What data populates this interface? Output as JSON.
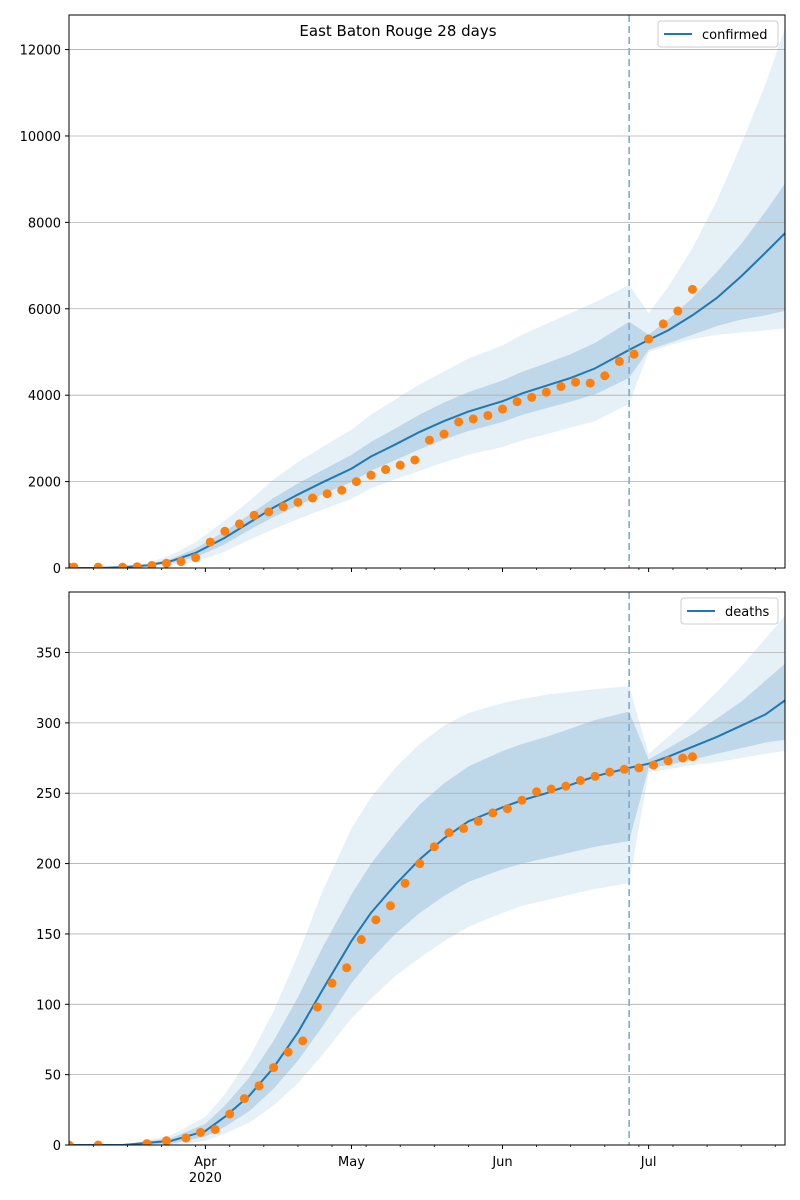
{
  "chart_data": [
    {
      "type": "line",
      "title": "East Baton Rouge 28 days",
      "xlabel": "",
      "ylabel": "",
      "ylim": [
        0,
        12800
      ],
      "yticks": [
        0,
        2000,
        4000,
        6000,
        8000,
        10000,
        12000
      ],
      "grid": "y",
      "legend": "top-right",
      "forecast_start": "2020-06-27",
      "series": [
        {
          "name": "confirmed",
          "kind": "model-median",
          "color": "#1f77b4",
          "x": [
            "2020-03-01",
            "2020-03-10",
            "2020-03-15",
            "2020-03-20",
            "2020-03-25",
            "2020-03-30",
            "2020-04-05",
            "2020-04-10",
            "2020-04-15",
            "2020-04-20",
            "2020-04-25",
            "2020-05-01",
            "2020-05-05",
            "2020-05-10",
            "2020-05-15",
            "2020-05-20",
            "2020-05-25",
            "2020-06-01",
            "2020-06-05",
            "2020-06-10",
            "2020-06-15",
            "2020-06-20",
            "2020-06-27",
            "2020-07-01",
            "2020-07-05",
            "2020-07-10",
            "2020-07-15",
            "2020-07-20",
            "2020-07-25",
            "2020-07-29"
          ],
          "y": [
            0,
            0,
            20,
            60,
            160,
            350,
            700,
            1050,
            1400,
            1700,
            1980,
            2300,
            2580,
            2860,
            3150,
            3400,
            3620,
            3860,
            4040,
            4220,
            4400,
            4620,
            5050,
            5280,
            5500,
            5850,
            6250,
            6750,
            7300,
            7750
          ],
          "band_inner": [
            [
              0,
              0
            ],
            [
              0,
              0
            ],
            [
              10,
              30
            ],
            [
              40,
              80
            ],
            [
              110,
              210
            ],
            [
              250,
              450
            ],
            [
              550,
              850
            ],
            [
              880,
              1230
            ],
            [
              1180,
              1620
            ],
            [
              1450,
              1960
            ],
            [
              1700,
              2260
            ],
            [
              1990,
              2620
            ],
            [
              2250,
              2920
            ],
            [
              2500,
              3230
            ],
            [
              2750,
              3550
            ],
            [
              2980,
              3830
            ],
            [
              3170,
              4070
            ],
            [
              3380,
              4340
            ],
            [
              3540,
              4540
            ],
            [
              3700,
              4740
            ],
            [
              3850,
              4950
            ],
            [
              4020,
              5210
            ],
            [
              4400,
              5700
            ],
            [
              5050,
              5400
            ],
            [
              5200,
              5750
            ],
            [
              5400,
              6250
            ],
            [
              5600,
              6850
            ],
            [
              5750,
              7500
            ],
            [
              5850,
              8250
            ],
            [
              5950,
              8900
            ]
          ],
          "band_outer": [
            [
              0,
              0
            ],
            [
              0,
              0
            ],
            [
              0,
              45
            ],
            [
              20,
              110
            ],
            [
              60,
              300
            ],
            [
              150,
              600
            ],
            [
              380,
              1100
            ],
            [
              650,
              1550
            ],
            [
              900,
              2050
            ],
            [
              1130,
              2450
            ],
            [
              1350,
              2800
            ],
            [
              1600,
              3200
            ],
            [
              1850,
              3550
            ],
            [
              2050,
              3900
            ],
            [
              2250,
              4250
            ],
            [
              2450,
              4550
            ],
            [
              2620,
              4850
            ],
            [
              2800,
              5150
            ],
            [
              2950,
              5400
            ],
            [
              3100,
              5650
            ],
            [
              3250,
              5900
            ],
            [
              3400,
              6150
            ],
            [
              3800,
              6550
            ],
            [
              5000,
              5900
            ],
            [
              5150,
              6500
            ],
            [
              5300,
              7400
            ],
            [
              5400,
              8500
            ],
            [
              5450,
              9800
            ],
            [
              5500,
              11200
            ],
            [
              5550,
              12500
            ]
          ]
        },
        {
          "name": "",
          "kind": "observed",
          "color": "#ff7f0e",
          "x": [
            "2020-03-01",
            "2020-03-05",
            "2020-03-10",
            "2020-03-15",
            "2020-03-18",
            "2020-03-21",
            "2020-03-24",
            "2020-03-27",
            "2020-03-30",
            "2020-04-02",
            "2020-04-05",
            "2020-04-08",
            "2020-04-11",
            "2020-04-14",
            "2020-04-17",
            "2020-04-20",
            "2020-04-23",
            "2020-04-26",
            "2020-04-29",
            "2020-05-02",
            "2020-05-05",
            "2020-05-08",
            "2020-05-11",
            "2020-05-14",
            "2020-05-17",
            "2020-05-20",
            "2020-05-23",
            "2020-05-26",
            "2020-05-29",
            "2020-06-01",
            "2020-06-04",
            "2020-06-07",
            "2020-06-10",
            "2020-06-13",
            "2020-06-16",
            "2020-06-19",
            "2020-06-22",
            "2020-06-25",
            "2020-06-28",
            "2020-07-01",
            "2020-07-04",
            "2020-07-07",
            "2020-07-10"
          ],
          "y": [
            20,
            20,
            20,
            20,
            30,
            60,
            110,
            150,
            240,
            600,
            850,
            1020,
            1220,
            1300,
            1420,
            1520,
            1620,
            1720,
            1800,
            2000,
            2150,
            2280,
            2380,
            2500,
            2960,
            3100,
            3380,
            3450,
            3530,
            3680,
            3850,
            3950,
            4070,
            4200,
            4300,
            4280,
            4450,
            4780,
            4950,
            5300,
            5650,
            5950,
            6450
          ]
        }
      ]
    },
    {
      "type": "line",
      "title": "",
      "xlabel": "",
      "ylabel": "",
      "ylim": [
        0,
        393
      ],
      "yticks": [
        0,
        50,
        100,
        150,
        200,
        250,
        300,
        350
      ],
      "grid": "y",
      "legend": "top-right",
      "forecast_start": "2020-06-27",
      "xticks": [
        {
          "date": "2020-04-01",
          "label": "Apr",
          "sublabel": "2020"
        },
        {
          "date": "2020-05-01",
          "label": "May",
          "sublabel": ""
        },
        {
          "date": "2020-06-01",
          "label": "Jun",
          "sublabel": ""
        },
        {
          "date": "2020-07-01",
          "label": "Jul",
          "sublabel": ""
        }
      ],
      "xlim": [
        "2020-03-04",
        "2020-07-29"
      ],
      "series": [
        {
          "name": "deaths",
          "kind": "model-median",
          "color": "#1f77b4",
          "x": [
            "2020-03-01",
            "2020-03-15",
            "2020-03-25",
            "2020-04-01",
            "2020-04-05",
            "2020-04-10",
            "2020-04-15",
            "2020-04-20",
            "2020-04-25",
            "2020-05-01",
            "2020-05-05",
            "2020-05-10",
            "2020-05-15",
            "2020-05-20",
            "2020-05-25",
            "2020-06-01",
            "2020-06-05",
            "2020-06-10",
            "2020-06-15",
            "2020-06-20",
            "2020-06-27",
            "2020-07-01",
            "2020-07-05",
            "2020-07-10",
            "2020-07-15",
            "2020-07-20",
            "2020-07-25",
            "2020-07-29"
          ],
          "y": [
            0,
            0,
            3,
            10,
            20,
            35,
            55,
            80,
            110,
            145,
            165,
            185,
            203,
            218,
            230,
            240,
            245,
            250,
            256,
            262,
            268,
            271,
            276,
            283,
            290,
            298,
            306,
            316
          ],
          "band_inner": [
            [
              0,
              0
            ],
            [
              0,
              0
            ],
            [
              1,
              5
            ],
            [
              6,
              15
            ],
            [
              13,
              28
            ],
            [
              24,
              48
            ],
            [
              40,
              74
            ],
            [
              60,
              105
            ],
            [
              84,
              140
            ],
            [
              115,
              178
            ],
            [
              132,
              200
            ],
            [
              150,
              222
            ],
            [
              165,
              242
            ],
            [
              177,
              257
            ],
            [
              187,
              269
            ],
            [
              196,
              280
            ],
            [
              200,
              285
            ],
            [
              204,
              290
            ],
            [
              208,
              296
            ],
            [
              212,
              302
            ],
            [
              216,
              308
            ],
            [
              268,
              274
            ],
            [
              270,
              282
            ],
            [
              274,
              292
            ],
            [
              278,
              303
            ],
            [
              282,
              315
            ],
            [
              286,
              330
            ],
            [
              288,
              342
            ]
          ],
          "band_outer": [
            [
              0,
              0
            ],
            [
              0,
              0
            ],
            [
              0,
              7
            ],
            [
              3,
              20
            ],
            [
              8,
              36
            ],
            [
              16,
              62
            ],
            [
              28,
              95
            ],
            [
              44,
              135
            ],
            [
              64,
              180
            ],
            [
              90,
              225
            ],
            [
              104,
              247
            ],
            [
              120,
              268
            ],
            [
              133,
              285
            ],
            [
              145,
              298
            ],
            [
              155,
              307
            ],
            [
              165,
              314
            ],
            [
              170,
              317
            ],
            [
              174,
              320
            ],
            [
              178,
              322
            ],
            [
              182,
              324
            ],
            [
              186,
              326
            ],
            [
              265,
              278
            ],
            [
              267,
              290
            ],
            [
              270,
              305
            ],
            [
              272,
              322
            ],
            [
              275,
              340
            ],
            [
              278,
              360
            ],
            [
              280,
              376
            ]
          ]
        },
        {
          "name": "",
          "kind": "observed",
          "color": "#ff7f0e",
          "x": [
            "2020-03-01",
            "2020-03-10",
            "2020-03-20",
            "2020-03-24",
            "2020-03-28",
            "2020-03-31",
            "2020-04-03",
            "2020-04-06",
            "2020-04-09",
            "2020-04-12",
            "2020-04-15",
            "2020-04-18",
            "2020-04-21",
            "2020-04-24",
            "2020-04-27",
            "2020-04-30",
            "2020-05-03",
            "2020-05-06",
            "2020-05-09",
            "2020-05-12",
            "2020-05-15",
            "2020-05-18",
            "2020-05-21",
            "2020-05-24",
            "2020-05-27",
            "2020-05-30",
            "2020-06-02",
            "2020-06-05",
            "2020-06-08",
            "2020-06-11",
            "2020-06-14",
            "2020-06-17",
            "2020-06-20",
            "2020-06-23",
            "2020-06-26",
            "2020-06-29",
            "2020-07-02",
            "2020-07-05",
            "2020-07-08",
            "2020-07-10"
          ],
          "y": [
            0,
            0,
            1,
            3,
            5,
            9,
            11,
            22,
            33,
            42,
            55,
            66,
            74,
            98,
            115,
            126,
            146,
            160,
            170,
            186,
            200,
            212,
            222,
            225,
            230,
            236,
            239,
            245,
            251,
            253,
            255,
            259,
            262,
            265,
            267,
            268,
            270,
            273,
            275,
            276
          ]
        }
      ]
    }
  ]
}
